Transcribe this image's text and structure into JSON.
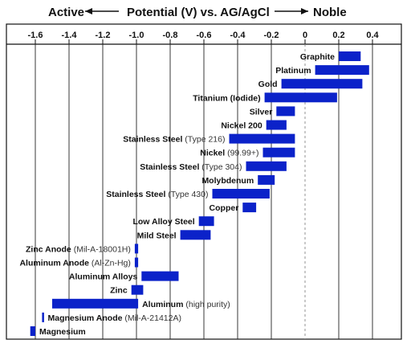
{
  "chart_data": {
    "type": "bar",
    "orientation": "horizontal-range",
    "title": {
      "left": "Active",
      "center": "Potential (V) vs. AG/AgCl",
      "right": "Noble"
    },
    "xlim": [
      -1.65,
      0.55
    ],
    "xticks": [
      -1.6,
      -1.4,
      -1.2,
      -1.0,
      -0.8,
      -0.6,
      -0.4,
      -0.2,
      0,
      0.2,
      0.4
    ],
    "tick_labels": [
      "-1.6",
      "-1.4",
      "-1.2",
      "-1.0",
      "-0.8",
      "-0.6",
      "-0.4",
      "-0.2",
      "0",
      "0.2",
      "0.4"
    ],
    "grid": "vertical gridlines at ticks",
    "bar_color": "#0b22c9",
    "label_side": "left of bar",
    "series": [
      {
        "name": "Graphite",
        "note": "",
        "min": 0.2,
        "max": 0.33
      },
      {
        "name": "Platinum",
        "note": "",
        "min": 0.06,
        "max": 0.38
      },
      {
        "name": "Gold",
        "note": "",
        "min": -0.14,
        "max": 0.34
      },
      {
        "name": "Titanium (Iodide)",
        "note": "",
        "min": -0.24,
        "max": 0.19
      },
      {
        "name": "Silver",
        "note": "",
        "min": -0.17,
        "max": -0.06
      },
      {
        "name": "Nickel 200",
        "note": "",
        "min": -0.23,
        "max": -0.11
      },
      {
        "name": "Stainless Steel",
        "note": "(Type 216)",
        "min": -0.45,
        "max": -0.06
      },
      {
        "name": "Nickel",
        "note": "(99.99+)",
        "min": -0.25,
        "max": -0.06
      },
      {
        "name": "Stainless Steel",
        "note": "(Type 304)",
        "min": -0.35,
        "max": -0.11
      },
      {
        "name": "Molybdenum",
        "note": "",
        "min": -0.28,
        "max": -0.18
      },
      {
        "name": "Stainless Steel",
        "note": "(Type 430)",
        "min": -0.55,
        "max": -0.21
      },
      {
        "name": "Copper",
        "note": "",
        "min": -0.37,
        "max": -0.29
      },
      {
        "name": "Low Alloy Steel",
        "note": "",
        "min": -0.63,
        "max": -0.54
      },
      {
        "name": "Mild Steel",
        "note": "",
        "min": -0.74,
        "max": -0.56
      },
      {
        "name": "Zinc Anode",
        "note": "(Mil-A-18001H)",
        "min": -1.01,
        "max": -0.99
      },
      {
        "name": "Aluminum Anode",
        "note": "(Al-Zn-Hg)",
        "min": -1.01,
        "max": -0.99
      },
      {
        "name": "Aluminum Alloys",
        "note": "",
        "min": -0.97,
        "max": -0.75
      },
      {
        "name": "Zinc",
        "note": "",
        "min": -1.03,
        "max": -0.96
      },
      {
        "name": "Aluminum",
        "note": "(high purity)",
        "min": -1.5,
        "max": -0.99
      },
      {
        "name": "Magnesium Anode",
        "note": "(Mil-A-21412A)",
        "min": -1.56,
        "max": -1.55
      },
      {
        "name": "Magnesium",
        "note": "",
        "min": -1.63,
        "max": -1.6
      }
    ]
  }
}
